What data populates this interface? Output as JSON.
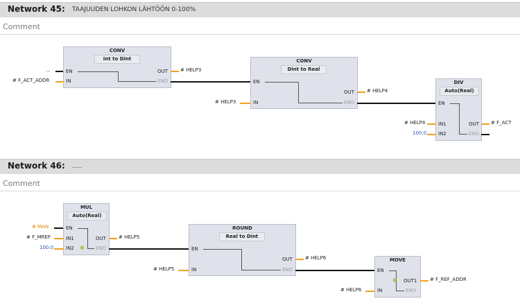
{
  "network45": {
    "title": "Network 45:",
    "description": "TAAJUUDEN LOHKON LÄHTÖÖN 0-100%",
    "comment": "Comment",
    "conv1": {
      "title": "CONV",
      "type": "Int  to  Dint",
      "en": "EN",
      "in": "IN",
      "out": "OUT",
      "eno": "ENO",
      "en_src": "...",
      "in_src": "# F_ACT_ADDR",
      "out_dst": "# HELP3"
    },
    "conv2": {
      "title": "CONV",
      "type": "Dint  to  Real",
      "en": "EN",
      "in": "IN",
      "out": "OUT",
      "eno": "ENO",
      "in_src": "# HELP3",
      "out_dst": "# HELP4"
    },
    "div": {
      "title": "DIV",
      "type": "Auto(Real)",
      "en": "EN",
      "in1": "IN1",
      "in2": "IN2",
      "out": "OUT",
      "eno": "ENO",
      "in1_src": "# HELP4",
      "in2_src": "100.0",
      "out_dst": "# F_ACT"
    }
  },
  "network46": {
    "title": "Network 46:",
    "description": ".....",
    "comment": "Comment",
    "mul": {
      "title": "MUL",
      "type": "Auto(Real)",
      "en": "EN",
      "in1": "IN1",
      "in2": "IN2",
      "out": "OUT",
      "eno": "ENO",
      "en_src": "# MAN",
      "in1_src": "# F_MREF",
      "in2_src": "100.0",
      "out_dst": "# HELP5"
    },
    "round": {
      "title": "ROUND",
      "type": "Real  to  Dint",
      "en": "EN",
      "in": "IN",
      "out": "OUT",
      "eno": "ENO",
      "in_src": "# HELP5",
      "out_dst": "# HELP6"
    },
    "move": {
      "title": "MOVE",
      "en": "EN",
      "in": "IN",
      "out1": "OUT1",
      "eno": "ENO",
      "in_src": "# HELP6",
      "out1_dst": "# F_REF_ADDR"
    }
  },
  "colors": {
    "header_bg": "#dcdcdc",
    "block_bg": "#dfe2ea",
    "wire": "#111111",
    "param_wire": "#f0a020",
    "constant": "#2a55b5",
    "bool_var": "#e08a00"
  }
}
